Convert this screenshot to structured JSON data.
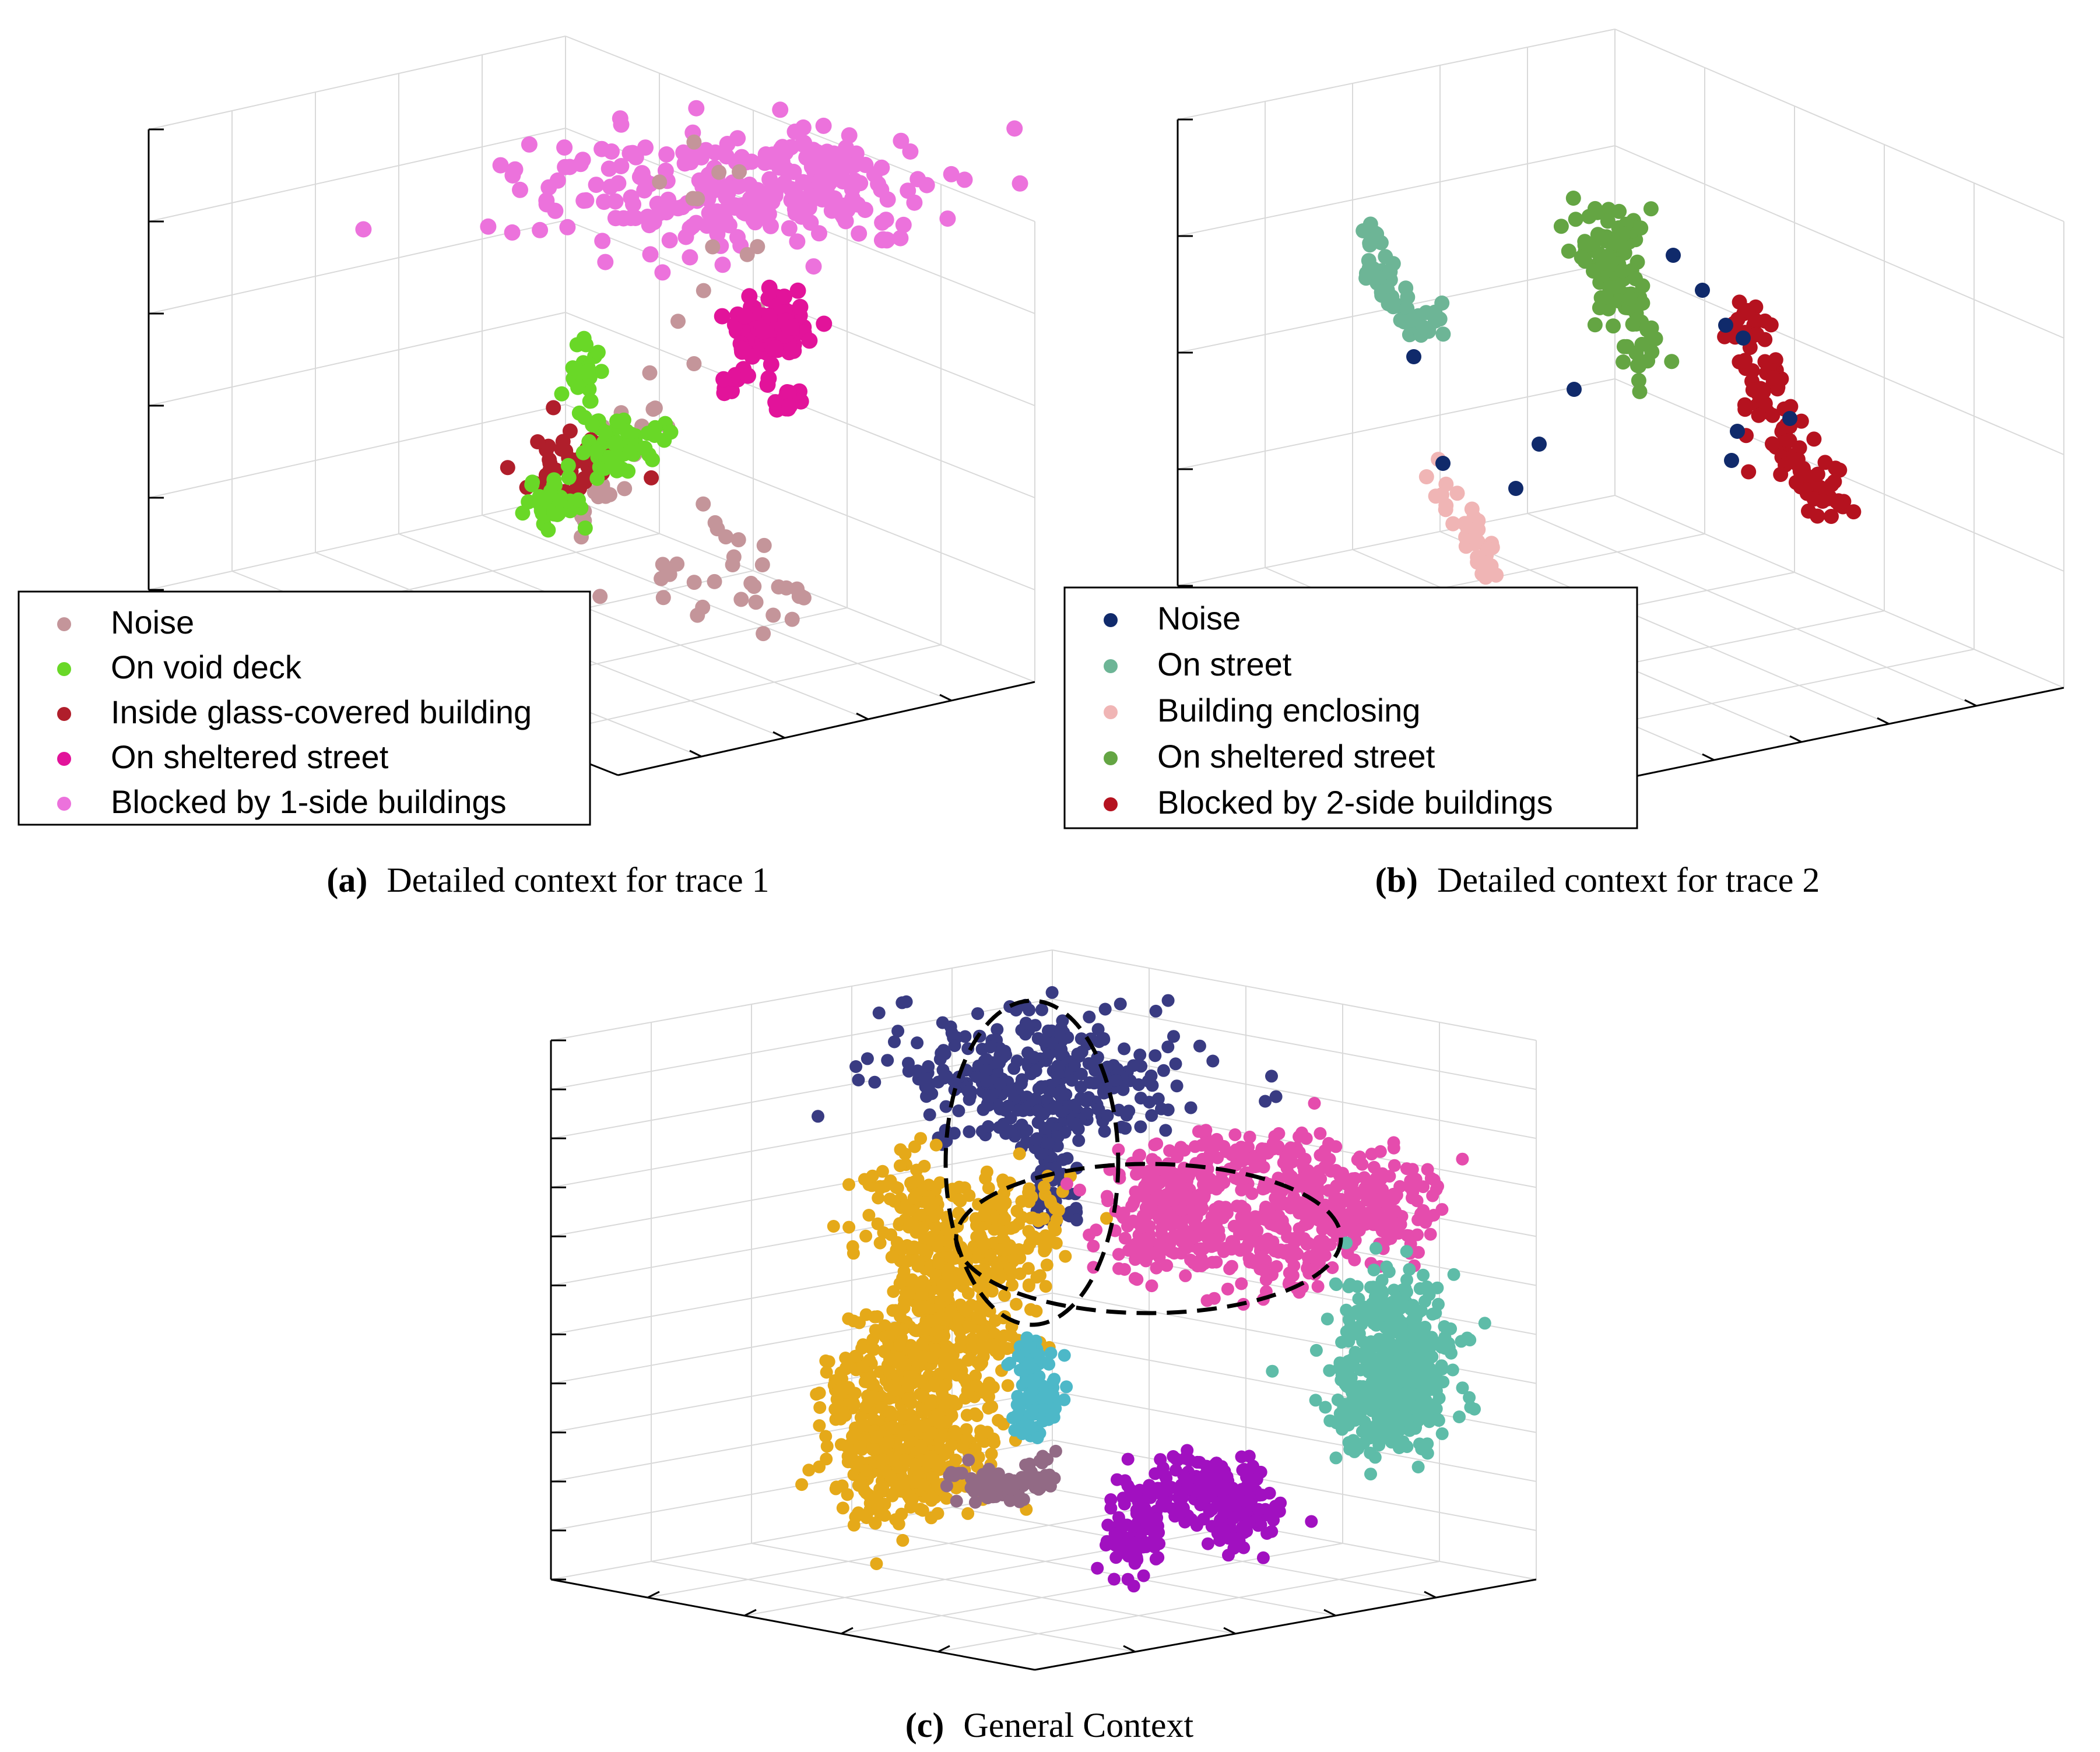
{
  "chart_data": [
    {
      "type": "scatter",
      "subtype": "3d-scatter",
      "panel_label": "(a)",
      "caption": "Detailed context for trace 1",
      "grid": true,
      "legend_placement": "bottom-left",
      "series": [
        {
          "name": "Noise",
          "color": "#c4959a"
        },
        {
          "name": "On void deck",
          "color": "#69d827"
        },
        {
          "name": "Inside glass-covered building",
          "color": "#b01e2b"
        },
        {
          "name": "On sheltered street",
          "color": "#e2139a"
        },
        {
          "name": "Blocked by 1-side buildings",
          "color": "#ec72dc"
        }
      ]
    },
    {
      "type": "scatter",
      "subtype": "3d-scatter",
      "panel_label": "(b)",
      "caption": "Detailed context for trace 2",
      "grid": true,
      "legend_placement": "bottom-left",
      "series": [
        {
          "name": "Noise",
          "color": "#102a6b"
        },
        {
          "name": "On street",
          "color": "#6db596"
        },
        {
          "name": "Building enclosing",
          "color": "#f0b5b5"
        },
        {
          "name": "On sheltered street",
          "color": "#64a543"
        },
        {
          "name": "Blocked by 2-side buildings",
          "color": "#b5121f"
        }
      ]
    },
    {
      "type": "scatter",
      "subtype": "3d-scatter",
      "panel_label": "(c)",
      "caption": "General Context",
      "grid": true,
      "annotations": "two dashed ellipses",
      "clusters": [
        {
          "color": "#393b82"
        },
        {
          "color": "#e5a919"
        },
        {
          "color": "#e54cad"
        },
        {
          "color": "#5ebca8"
        },
        {
          "color": "#4db8c8"
        },
        {
          "color": "#926a85"
        },
        {
          "color": "#a110c0"
        }
      ]
    }
  ]
}
